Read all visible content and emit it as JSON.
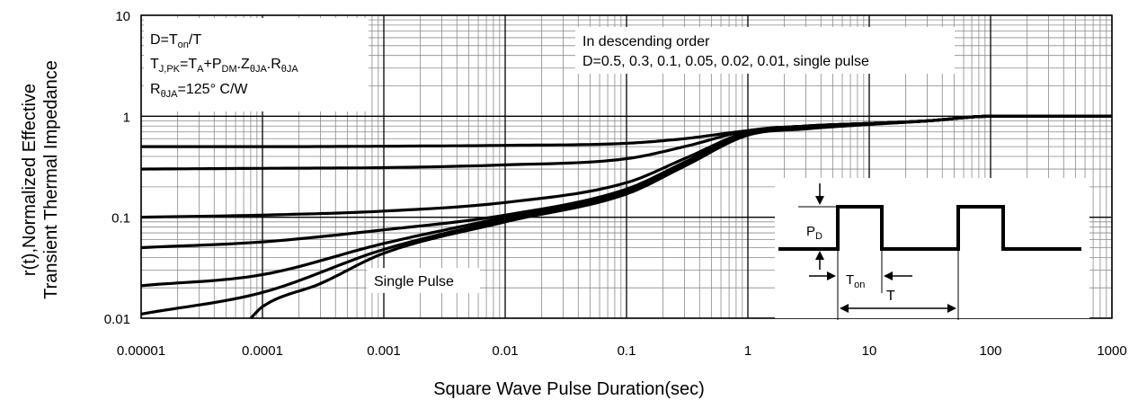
{
  "chart_data": {
    "type": "line",
    "title": "",
    "xlabel": "Square Wave Pulse Duration(sec)",
    "ylabel": [
      "r(t),Normalized Effective",
      "Transient Thermal Impedance"
    ],
    "xscale": "log",
    "yscale": "log",
    "xlim": [
      1e-05,
      1000
    ],
    "ylim": [
      0.01,
      10
    ],
    "grid": true,
    "x_ticks": [
      "0.00001",
      "0.0001",
      "0.001",
      "0.01",
      "0.1",
      "1",
      "10",
      "100",
      "1000"
    ],
    "y_ticks": [
      "10",
      "1",
      "0.1",
      "0.01"
    ],
    "annotations": {
      "formula_box": [
        "D=Ton/T",
        "TJ,PK=TA+PDM.ZθJA.RθJA",
        "RθJA=125° C/W"
      ],
      "order_box": [
        "In descending order",
        "D=0.5, 0.3, 0.1, 0.05, 0.02, 0.01, single pulse"
      ],
      "single_pulse_label": "Single Pulse",
      "inset_labels": {
        "pd": "PD",
        "ton": "Ton",
        "t": "T"
      }
    },
    "series": [
      {
        "name": "0.5",
        "x": [
          1e-05,
          0.0001,
          0.001,
          0.01,
          0.1,
          0.3,
          1,
          3,
          10,
          30,
          100,
          1000
        ],
        "y": [
          0.5,
          0.5,
          0.505,
          0.515,
          0.54,
          0.6,
          0.72,
          0.8,
          0.85,
          0.9,
          1.0,
          1.0
        ]
      },
      {
        "name": "0.3",
        "x": [
          1e-05,
          0.0001,
          0.001,
          0.01,
          0.1,
          0.3,
          1,
          3,
          10,
          30,
          100,
          1000
        ],
        "y": [
          0.3,
          0.305,
          0.31,
          0.33,
          0.38,
          0.5,
          0.72,
          0.8,
          0.85,
          0.9,
          1.0,
          1.0
        ]
      },
      {
        "name": "0.1",
        "x": [
          1e-05,
          0.0001,
          0.001,
          0.01,
          0.1,
          0.3,
          1,
          3,
          10,
          30,
          100,
          1000
        ],
        "y": [
          0.1,
          0.105,
          0.115,
          0.14,
          0.22,
          0.38,
          0.7,
          0.8,
          0.85,
          0.9,
          1.0,
          1.0
        ]
      },
      {
        "name": "0.05",
        "x": [
          1e-05,
          0.0001,
          0.001,
          0.01,
          0.1,
          0.3,
          1,
          3,
          10,
          30,
          100,
          1000
        ],
        "y": [
          0.05,
          0.057,
          0.075,
          0.105,
          0.19,
          0.35,
          0.68,
          0.78,
          0.84,
          0.9,
          1.0,
          1.0
        ]
      },
      {
        "name": "0.02",
        "x": [
          1e-05,
          0.0001,
          0.001,
          0.01,
          0.1,
          0.3,
          1,
          3,
          10,
          30,
          100,
          1000
        ],
        "y": [
          0.021,
          0.027,
          0.055,
          0.1,
          0.18,
          0.34,
          0.67,
          0.77,
          0.84,
          0.9,
          1.0,
          1.0
        ]
      },
      {
        "name": "0.01",
        "x": [
          1e-05,
          0.0001,
          0.001,
          0.01,
          0.1,
          0.3,
          1,
          3,
          10,
          30,
          100,
          1000
        ],
        "y": [
          0.011,
          0.018,
          0.048,
          0.095,
          0.175,
          0.33,
          0.66,
          0.76,
          0.83,
          0.9,
          1.0,
          1.0
        ]
      },
      {
        "name": "single pulse",
        "x": [
          8e-05,
          0.0001,
          0.0003,
          0.001,
          0.01,
          0.1,
          0.3,
          1,
          3,
          10,
          30,
          100,
          1000
        ],
        "y": [
          0.01,
          0.013,
          0.022,
          0.044,
          0.09,
          0.17,
          0.32,
          0.65,
          0.75,
          0.83,
          0.9,
          1.0,
          1.0
        ]
      }
    ]
  }
}
